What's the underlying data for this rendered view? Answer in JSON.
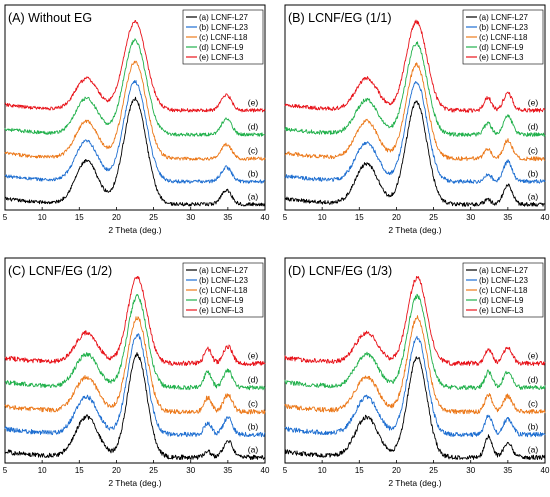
{
  "chart_data": [
    {
      "type": "line",
      "panel": "A",
      "title": "(A)  Without EG",
      "xlabel": "2 Theta (deg.)",
      "ylabel": "",
      "xlim": [
        5,
        40
      ],
      "xticks": [
        5,
        10,
        15,
        20,
        25,
        30,
        35,
        40
      ],
      "y_ticks_shown": false,
      "legend": "top-right",
      "series": [
        {
          "name": "(a) LCNF-L27",
          "label": "(a)",
          "color": "#000000",
          "offset": 0.0,
          "peaks": [
            [
              16.0,
              0.3,
              1.5
            ],
            [
              22.5,
              0.74,
              1.5
            ],
            [
              34.8,
              0.1,
              0.7
            ]
          ],
          "noise": 0.012
        },
        {
          "name": "(b) LCNF-L23",
          "label": "(b)",
          "color": "#1f6fd1",
          "offset": 0.16,
          "peaks": [
            [
              16.0,
              0.28,
              1.5
            ],
            [
              22.5,
              0.7,
              1.5
            ],
            [
              34.8,
              0.1,
              0.7
            ]
          ],
          "noise": 0.012
        },
        {
          "name": "(c) LCNF-L18",
          "label": "(c)",
          "color": "#ec7a1c",
          "offset": 0.32,
          "peaks": [
            [
              16.0,
              0.26,
              1.5
            ],
            [
              22.5,
              0.68,
              1.5
            ],
            [
              34.8,
              0.1,
              0.7
            ]
          ],
          "noise": 0.012
        },
        {
          "name": "(d) LCNF-L9",
          "label": "(d)",
          "color": "#22b14c",
          "offset": 0.49,
          "peaks": [
            [
              16.0,
              0.25,
              1.5
            ],
            [
              22.5,
              0.66,
              1.5
            ],
            [
              34.8,
              0.11,
              0.7
            ]
          ],
          "noise": 0.012
        },
        {
          "name": "(e) LCNF-L3",
          "label": "(e)",
          "color": "#e8141b",
          "offset": 0.66,
          "peaks": [
            [
              16.0,
              0.22,
              1.5
            ],
            [
              22.5,
              0.62,
              1.5
            ],
            [
              34.8,
              0.11,
              0.7
            ]
          ],
          "noise": 0.012
        }
      ]
    },
    {
      "type": "line",
      "panel": "B",
      "title": "(B)  LCNF/EG  (1/1)",
      "xlabel": "2 Theta (deg.)",
      "ylabel": "",
      "xlim": [
        5,
        40
      ],
      "xticks": [
        5,
        10,
        15,
        20,
        25,
        30,
        35,
        40
      ],
      "y_ticks_shown": false,
      "legend": "top-right",
      "series": [
        {
          "name": "(a) LCNF-L27",
          "label": "(a)",
          "color": "#000000",
          "offset": 0.0,
          "peaks": [
            [
              16.0,
              0.28,
              1.5
            ],
            [
              22.7,
              0.72,
              1.4
            ],
            [
              35.0,
              0.14,
              0.6
            ],
            [
              32.3,
              0.03,
              0.5
            ]
          ],
          "noise": 0.014
        },
        {
          "name": "(b) LCNF-L23",
          "label": "(b)",
          "color": "#1f6fd1",
          "offset": 0.16,
          "peaks": [
            [
              16.0,
              0.27,
              1.5
            ],
            [
              22.7,
              0.7,
              1.4
            ],
            [
              35.0,
              0.14,
              0.6
            ],
            [
              32.3,
              0.05,
              0.5
            ]
          ],
          "noise": 0.014
        },
        {
          "name": "(c) LCNF-L18",
          "label": "(c)",
          "color": "#ec7a1c",
          "offset": 0.32,
          "peaks": [
            [
              16.0,
              0.26,
              1.5
            ],
            [
              22.7,
              0.66,
              1.4
            ],
            [
              35.0,
              0.13,
              0.6
            ],
            [
              32.3,
              0.07,
              0.5
            ]
          ],
          "noise": 0.014
        },
        {
          "name": "(d) LCNF-L9",
          "label": "(d)",
          "color": "#22b14c",
          "offset": 0.49,
          "peaks": [
            [
              16.0,
              0.24,
              1.5
            ],
            [
              22.7,
              0.64,
              1.4
            ],
            [
              35.0,
              0.13,
              0.6
            ],
            [
              32.3,
              0.08,
              0.5
            ]
          ],
          "noise": 0.014
        },
        {
          "name": "(e) LCNF-L3",
          "label": "(e)",
          "color": "#e8141b",
          "offset": 0.66,
          "peaks": [
            [
              16.0,
              0.22,
              1.5
            ],
            [
              22.7,
              0.62,
              1.4
            ],
            [
              35.0,
              0.12,
              0.6
            ],
            [
              32.3,
              0.09,
              0.5
            ]
          ],
          "noise": 0.014
        }
      ]
    },
    {
      "type": "line",
      "panel": "C",
      "title": "(C)   LCNF/EG  (1/2)",
      "xlabel": "2 Theta (deg.)",
      "ylabel": "",
      "xlim": [
        5,
        40
      ],
      "xticks": [
        5,
        10,
        15,
        20,
        25,
        30,
        35,
        40
      ],
      "y_ticks_shown": false,
      "legend": "top-right",
      "series": [
        {
          "name": "(a) LCNF-L27",
          "label": "(a)",
          "color": "#000000",
          "offset": 0.0,
          "peaks": [
            [
              16.0,
              0.28,
              1.5
            ],
            [
              22.8,
              0.72,
              1.3
            ],
            [
              35.0,
              0.12,
              0.6
            ],
            [
              32.3,
              0.04,
              0.5
            ]
          ],
          "noise": 0.016
        },
        {
          "name": "(b) LCNF-L23",
          "label": "(b)",
          "color": "#1f6fd1",
          "offset": 0.16,
          "peaks": [
            [
              16.0,
              0.26,
              1.5
            ],
            [
              22.8,
              0.7,
              1.3
            ],
            [
              35.0,
              0.12,
              0.6
            ],
            [
              32.3,
              0.08,
              0.5
            ]
          ],
          "noise": 0.016
        },
        {
          "name": "(c) LCNF-L18",
          "label": "(c)",
          "color": "#ec7a1c",
          "offset": 0.32,
          "peaks": [
            [
              16.0,
              0.24,
              1.5
            ],
            [
              22.8,
              0.66,
              1.3
            ],
            [
              35.0,
              0.12,
              0.6
            ],
            [
              32.3,
              0.1,
              0.5
            ]
          ],
          "noise": 0.016
        },
        {
          "name": "(d) LCNF-L9",
          "label": "(d)",
          "color": "#22b14c",
          "offset": 0.49,
          "peaks": [
            [
              16.0,
              0.23,
              1.5
            ],
            [
              22.8,
              0.64,
              1.3
            ],
            [
              35.0,
              0.12,
              0.6
            ],
            [
              32.3,
              0.11,
              0.5
            ]
          ],
          "noise": 0.016
        },
        {
          "name": "(e) LCNF-L3",
          "label": "(e)",
          "color": "#e8141b",
          "offset": 0.66,
          "peaks": [
            [
              16.0,
              0.21,
              1.5
            ],
            [
              22.8,
              0.6,
              1.3
            ],
            [
              35.0,
              0.12,
              0.6
            ],
            [
              32.3,
              0.1,
              0.5
            ]
          ],
          "noise": 0.016
        }
      ]
    },
    {
      "type": "line",
      "panel": "D",
      "title": "(D)   LCNF/EG  (1/3)",
      "xlabel": "2 Theta (deg.)",
      "ylabel": "",
      "xlim": [
        5,
        40
      ],
      "xticks": [
        5,
        10,
        15,
        20,
        25,
        30,
        35,
        40
      ],
      "y_ticks_shown": false,
      "legend": "top-right",
      "series": [
        {
          "name": "(a) LCNF-L27",
          "label": "(a)",
          "color": "#000000",
          "offset": 0.0,
          "peaks": [
            [
              16.0,
              0.28,
              1.5
            ],
            [
              22.8,
              0.7,
              1.3
            ],
            [
              35.0,
              0.1,
              0.6
            ],
            [
              32.4,
              0.15,
              0.5
            ]
          ],
          "noise": 0.016
        },
        {
          "name": "(b) LCNF-L23",
          "label": "(b)",
          "color": "#1f6fd1",
          "offset": 0.16,
          "peaks": [
            [
              16.0,
              0.26,
              1.5
            ],
            [
              22.8,
              0.68,
              1.3
            ],
            [
              35.0,
              0.11,
              0.6
            ],
            [
              32.4,
              0.13,
              0.5
            ]
          ],
          "noise": 0.016
        },
        {
          "name": "(c) LCNF-L18",
          "label": "(c)",
          "color": "#ec7a1c",
          "offset": 0.32,
          "peaks": [
            [
              16.0,
              0.24,
              1.5
            ],
            [
              22.8,
              0.66,
              1.3
            ],
            [
              35.0,
              0.11,
              0.6
            ],
            [
              32.4,
              0.12,
              0.5
            ]
          ],
          "noise": 0.016
        },
        {
          "name": "(d) LCNF-L9",
          "label": "(d)",
          "color": "#22b14c",
          "offset": 0.49,
          "peaks": [
            [
              16.0,
              0.23,
              1.5
            ],
            [
              22.8,
              0.64,
              1.3
            ],
            [
              35.0,
              0.11,
              0.6
            ],
            [
              32.4,
              0.11,
              0.5
            ]
          ],
          "noise": 0.016
        },
        {
          "name": "(e) LCNF-L3",
          "label": "(e)",
          "color": "#e8141b",
          "offset": 0.66,
          "peaks": [
            [
              16.0,
              0.21,
              1.5
            ],
            [
              22.8,
              0.6,
              1.3
            ],
            [
              35.0,
              0.11,
              0.6
            ],
            [
              32.4,
              0.1,
              0.5
            ]
          ],
          "noise": 0.016
        }
      ]
    }
  ]
}
